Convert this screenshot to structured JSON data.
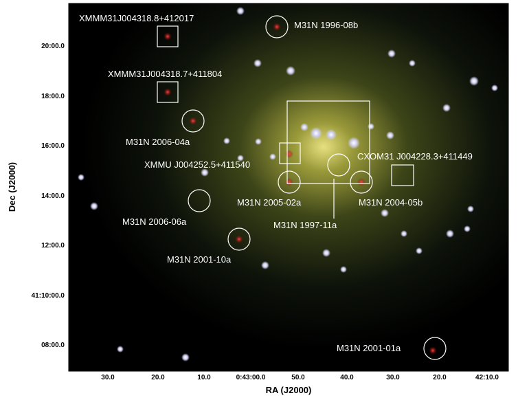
{
  "axes": {
    "x_label": "RA (J2000)",
    "y_label": "Dec (J2000)",
    "x_ticks": [
      "30.0",
      "20.0",
      "10.0",
      "0:43:00.0",
      "50.0",
      "40.0",
      "30.0",
      "20.0",
      "42:10.0"
    ],
    "y_ticks": [
      "20:00.0",
      "18:00.0",
      "16:00.0",
      "14:00.0",
      "12:00.0",
      "41:10:00.0",
      "08:00.0"
    ]
  },
  "sources": [
    {
      "label": "XMMM31J004318.8+412017"
    },
    {
      "label": "M31N 1996-08b"
    },
    {
      "label": "XMMM31J004318.7+411804"
    },
    {
      "label": "M31N 2006-04a"
    },
    {
      "label": "XMMU J004252.5+411540"
    },
    {
      "label": "CXOM31 J004228.3+411449"
    },
    {
      "label": "M31N 2005-02a"
    },
    {
      "label": "M31N 1997-11a"
    },
    {
      "label": "M31N 2004-05b"
    },
    {
      "label": "M31N 2006-06a"
    },
    {
      "label": "M31N 2001-10a"
    },
    {
      "label": "M31N 2001-01a"
    }
  ]
}
